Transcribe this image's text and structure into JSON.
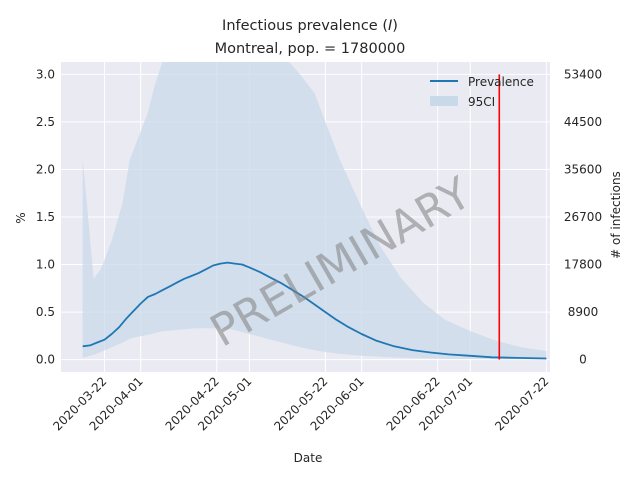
{
  "chart_data": {
    "type": "line",
    "title_line1": "Infectious prevalence (",
    "title_var": "I",
    "title_line1_end": ")",
    "title_line2": "Montreal, pop. = 1780000",
    "xlabel": "Date",
    "ylabel": "%",
    "y2label": "# of infections",
    "watermark": "PRELIMINARY",
    "ylim": [
      -0.13,
      3.13
    ],
    "xlim": [
      "2020-03-10",
      "2020-07-23"
    ],
    "x_ticks": [
      "2020-03-22",
      "2020-04-01",
      "2020-04-22",
      "2020-05-01",
      "2020-05-22",
      "2020-06-01",
      "2020-06-22",
      "2020-07-01",
      "2020-07-22"
    ],
    "y_ticks": [
      "0.0",
      "0.5",
      "1.0",
      "1.5",
      "2.0",
      "2.5",
      "3.0"
    ],
    "y2_ticks": [
      "0",
      "8900",
      "17800",
      "26700",
      "35600",
      "44500",
      "53400"
    ],
    "grid": true,
    "legend_position": "top-right",
    "colors": {
      "line": "#1f77b4",
      "band": "#c9d9ea",
      "vline": "#ff0000",
      "grid": "#ffffff",
      "plot_bg": "#eaeaf2"
    },
    "series": [
      {
        "name": "Prevalence",
        "x": [
          "2020-03-16",
          "2020-03-18",
          "2020-03-20",
          "2020-03-22",
          "2020-03-24",
          "2020-03-26",
          "2020-03-28",
          "2020-03-30",
          "2020-04-01",
          "2020-04-03",
          "2020-04-05",
          "2020-04-07",
          "2020-04-09",
          "2020-04-11",
          "2020-04-13",
          "2020-04-15",
          "2020-04-17",
          "2020-04-19",
          "2020-04-21",
          "2020-04-23",
          "2020-04-25",
          "2020-04-27",
          "2020-04-29",
          "2020-05-01",
          "2020-05-04",
          "2020-05-07",
          "2020-05-10",
          "2020-05-13",
          "2020-05-16",
          "2020-05-19",
          "2020-05-22",
          "2020-05-25",
          "2020-05-28",
          "2020-06-01",
          "2020-06-05",
          "2020-06-10",
          "2020-06-15",
          "2020-06-20",
          "2020-06-25",
          "2020-07-01",
          "2020-07-07",
          "2020-07-14",
          "2020-07-22"
        ],
        "values": [
          0.14,
          0.15,
          0.18,
          0.21,
          0.27,
          0.34,
          0.43,
          0.51,
          0.59,
          0.66,
          0.69,
          0.73,
          0.77,
          0.81,
          0.85,
          0.88,
          0.91,
          0.95,
          0.99,
          1.01,
          1.02,
          1.01,
          1.0,
          0.97,
          0.92,
          0.86,
          0.8,
          0.73,
          0.66,
          0.58,
          0.5,
          0.42,
          0.35,
          0.27,
          0.2,
          0.14,
          0.1,
          0.075,
          0.055,
          0.04,
          0.025,
          0.018,
          0.012
        ]
      },
      {
        "name": "95CI",
        "x": [
          "2020-03-16",
          "2020-03-17",
          "2020-03-19",
          "2020-03-21",
          "2020-03-24",
          "2020-03-27",
          "2020-03-29",
          "2020-03-31",
          "2020-04-03",
          "2020-04-05",
          "2020-04-07",
          "2020-04-10",
          "2020-04-13",
          "2020-04-16",
          "2020-04-19",
          "2020-04-21",
          "2020-04-23",
          "2020-04-26",
          "2020-04-27",
          "2020-04-28",
          "2020-04-30",
          "2020-05-03",
          "2020-05-06",
          "2020-05-09",
          "2020-05-12",
          "2020-05-15",
          "2020-05-19",
          "2020-05-22",
          "2020-05-26",
          "2020-06-01",
          "2020-06-06",
          "2020-06-12",
          "2020-06-18",
          "2020-06-24",
          "2020-07-01",
          "2020-07-08",
          "2020-07-15",
          "2020-07-22"
        ],
        "upper": [
          2.1,
          1.7,
          0.85,
          0.95,
          1.25,
          1.65,
          2.1,
          2.3,
          2.6,
          2.9,
          3.15,
          3.3,
          3.5,
          3.7,
          3.95,
          4.1,
          4.12,
          4.15,
          4.2,
          4.0,
          4.1,
          4.05,
          3.85,
          3.5,
          3.2,
          3.0,
          2.8,
          2.5,
          2.1,
          1.6,
          1.2,
          0.85,
          0.6,
          0.42,
          0.3,
          0.2,
          0.13,
          0.09
        ],
        "lower": [
          0.02,
          0.03,
          0.05,
          0.08,
          0.13,
          0.18,
          0.22,
          0.24,
          0.26,
          0.28,
          0.3,
          0.31,
          0.32,
          0.33,
          0.33,
          0.33,
          0.33,
          0.32,
          0.31,
          0.3,
          0.28,
          0.25,
          0.22,
          0.19,
          0.16,
          0.13,
          0.1,
          0.08,
          0.06,
          0.04,
          0.03,
          0.02,
          0.015,
          0.01,
          0.007,
          0.005,
          0.004,
          0.003
        ]
      }
    ],
    "vline_date": "2020-07-09"
  }
}
